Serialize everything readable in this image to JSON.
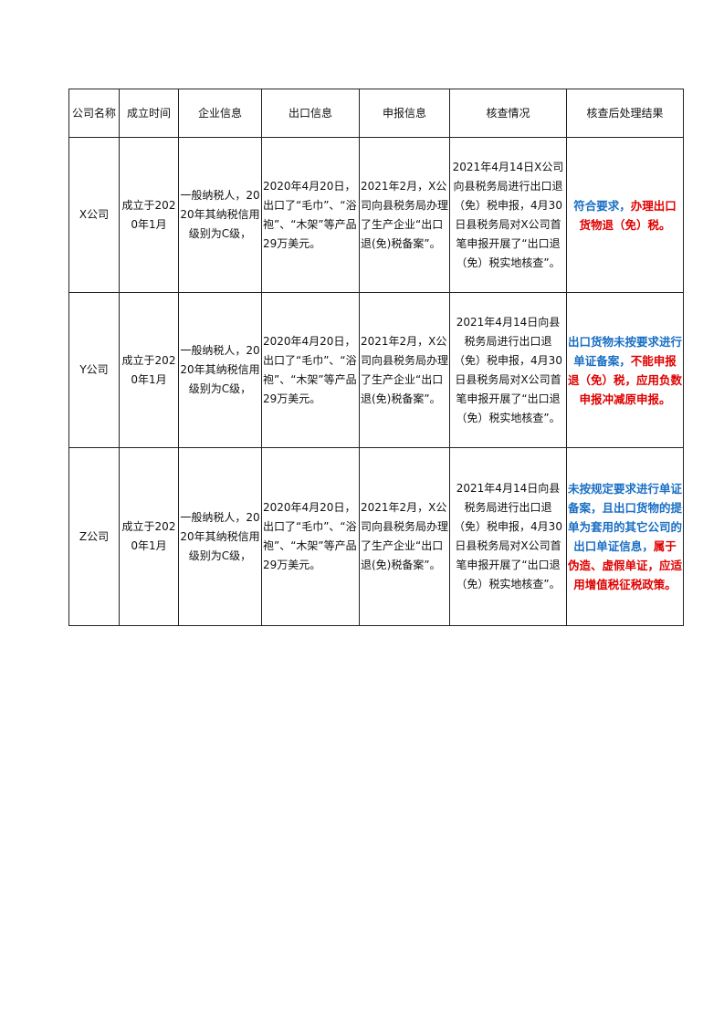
{
  "headers": [
    "公司名称",
    "成立时间",
    "企业信息",
    "出口信息",
    "申报信息",
    "核查情况",
    "核查后处理结果"
  ],
  "colors": {
    "blue": "#1a6fc4",
    "red": "#e00000"
  },
  "rows": [
    {
      "name": "X公司",
      "established": "成立于2020年1月",
      "enterprise": "一般纳税人，2020年其纳税信用级别为C级，",
      "export": "2020年4月20日，出口了“毛巾”、“浴袍”、“木架”等产品29万美元。",
      "filing": "2021年2月，X公司向县税务局办理了生产企业“出口退(免)税备案”。",
      "check": "2021年4月14日X公司向县税务局进行出口退（免）税申报，4月30日县税务局对X公司首笔申报开展了“出口退（免）税实地核查”。",
      "result_blue": "符合要求，",
      "result_red": "办理出口货物退（免）税。"
    },
    {
      "name": "Y公司",
      "established": "成立于2020年1月",
      "enterprise": "一般纳税人，2020年其纳税信用级别为C级，",
      "export": "2020年4月20日，出口了“毛巾”、“浴袍”、“木架”等产品29万美元。",
      "filing": "2021年2月，X公司向县税务局办理了生产企业“出口退(免)税备案”。",
      "check": "2021年4月14日向县税务局进行出口退（免）税申报，4月30日县税务局对X公司首笔申报开展了“出口退（免）税实地核查”。",
      "result_blue": "出口货物未按要求进行单证备案，",
      "result_red": "不能申报退（免）税，应用负数申报冲减原申报。"
    },
    {
      "name": "Z公司",
      "established": "成立于2020年1月",
      "enterprise": "一般纳税人，2020年其纳税信用级别为C级，",
      "export": "2020年4月20日，出口了“毛巾”、“浴袍”、“木架”等产品29万美元。",
      "filing": "2021年2月，X公司向县税务局办理了生产企业“出口退(免)税备案”。",
      "check": "2021年4月14日向县税务局进行出口退（免）税申报，4月30日县税务局对X公司首笔申报开展了“出口退（免）税实地核查”。",
      "result_blue": "未按规定要求进行单证备案，且出口货物的提单为套用的其它公司的出口单证信息，",
      "result_red": "属于伪造、虚假单证，应适用增值税征税政策。"
    }
  ]
}
